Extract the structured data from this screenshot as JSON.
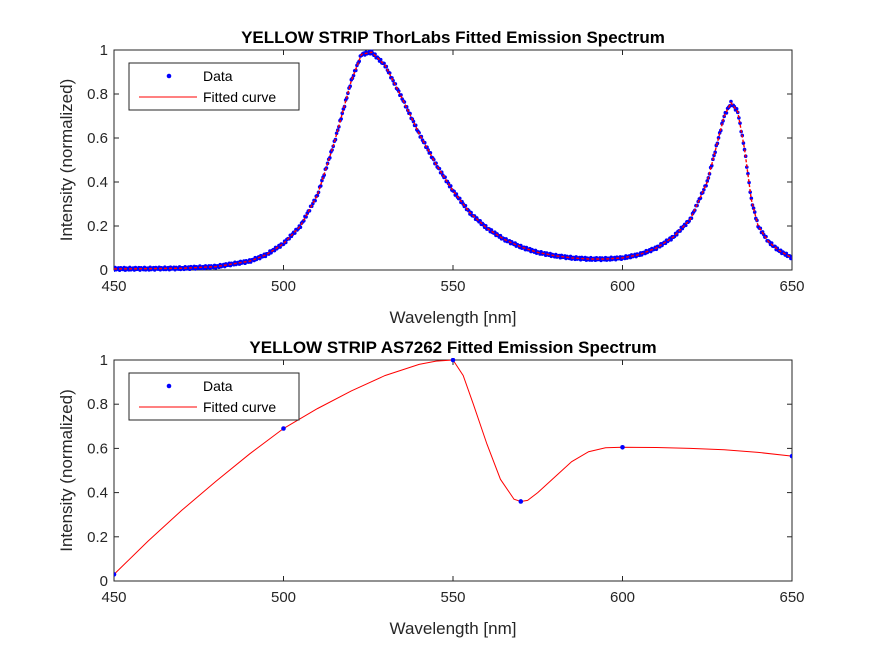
{
  "chart_data": [
    {
      "type": "scatter",
      "title": "YELLOW STRIP ThorLabs Fitted Emission Spectrum",
      "xlabel": "Wavelength [nm]",
      "ylabel": "Intensity (normalized)",
      "xlim": [
        450,
        650
      ],
      "ylim": [
        0,
        1
      ],
      "xticks": [
        "450",
        "500",
        "550",
        "600",
        "650"
      ],
      "yticks": [
        "0",
        "0.2",
        "0.4",
        "0.6",
        "0.8",
        "1"
      ],
      "grid": false,
      "legend_position": "top-left",
      "series": [
        {
          "name": "Data",
          "style": "dots",
          "color": "#0000ff",
          "x": [
            450,
            460,
            470,
            480,
            490,
            495,
            500,
            505,
            510,
            515,
            520,
            523,
            526,
            530,
            535,
            540,
            545,
            550,
            555,
            560,
            565,
            570,
            575,
            580,
            585,
            590,
            595,
            600,
            605,
            610,
            615,
            620,
            625,
            628,
            630,
            632,
            634,
            636,
            638,
            640,
            643,
            646,
            650
          ],
          "y": [
            0.005,
            0.006,
            0.008,
            0.015,
            0.04,
            0.07,
            0.12,
            0.2,
            0.34,
            0.58,
            0.86,
            0.98,
            0.99,
            0.93,
            0.78,
            0.62,
            0.48,
            0.36,
            0.26,
            0.19,
            0.14,
            0.105,
            0.08,
            0.065,
            0.055,
            0.05,
            0.05,
            0.055,
            0.07,
            0.1,
            0.15,
            0.23,
            0.4,
            0.58,
            0.7,
            0.76,
            0.72,
            0.55,
            0.32,
            0.2,
            0.13,
            0.09,
            0.055
          ]
        },
        {
          "name": "Fitted curve",
          "style": "line",
          "color": "#ff0000",
          "x": [
            450,
            460,
            470,
            480,
            490,
            495,
            500,
            505,
            510,
            515,
            520,
            523,
            526,
            530,
            535,
            540,
            545,
            550,
            555,
            560,
            565,
            570,
            575,
            580,
            585,
            590,
            595,
            600,
            605,
            610,
            615,
            620,
            625,
            628,
            630,
            632,
            634,
            636,
            638,
            640,
            643,
            646,
            650
          ],
          "y": [
            0.005,
            0.006,
            0.008,
            0.015,
            0.04,
            0.07,
            0.12,
            0.2,
            0.34,
            0.58,
            0.86,
            0.98,
            0.99,
            0.93,
            0.78,
            0.62,
            0.48,
            0.36,
            0.26,
            0.19,
            0.14,
            0.105,
            0.08,
            0.065,
            0.055,
            0.05,
            0.05,
            0.055,
            0.07,
            0.1,
            0.15,
            0.23,
            0.4,
            0.58,
            0.7,
            0.76,
            0.72,
            0.55,
            0.32,
            0.2,
            0.13,
            0.09,
            0.055
          ]
        }
      ]
    },
    {
      "type": "scatter",
      "title": "YELLOW STRIP AS7262 Fitted Emission Spectrum",
      "xlabel": "Wavelength [nm]",
      "ylabel": "Intensity (normalized)",
      "xlim": [
        450,
        650
      ],
      "ylim": [
        0,
        1
      ],
      "xticks": [
        "450",
        "500",
        "550",
        "600",
        "650"
      ],
      "yticks": [
        "0",
        "0.2",
        "0.4",
        "0.6",
        "0.8",
        "1"
      ],
      "grid": false,
      "legend_position": "top-left",
      "series": [
        {
          "name": "Data",
          "style": "dots",
          "color": "#0000ff",
          "x": [
            450,
            500,
            550,
            570,
            600,
            650
          ],
          "y": [
            0.03,
            0.69,
            1.0,
            0.36,
            0.605,
            0.565
          ]
        },
        {
          "name": "Fitted curve",
          "style": "line",
          "color": "#ff0000",
          "x": [
            450,
            460,
            470,
            480,
            490,
            500,
            510,
            520,
            530,
            540,
            545,
            550,
            553,
            556,
            560,
            564,
            568,
            570,
            572,
            575,
            580,
            585,
            590,
            595,
            600,
            610,
            620,
            630,
            640,
            650
          ],
          "y": [
            0.03,
            0.18,
            0.32,
            0.45,
            0.575,
            0.69,
            0.78,
            0.86,
            0.93,
            0.98,
            0.995,
            1.0,
            0.93,
            0.8,
            0.62,
            0.46,
            0.37,
            0.36,
            0.365,
            0.4,
            0.47,
            0.54,
            0.585,
            0.603,
            0.605,
            0.604,
            0.6,
            0.594,
            0.582,
            0.565
          ]
        }
      ]
    }
  ]
}
